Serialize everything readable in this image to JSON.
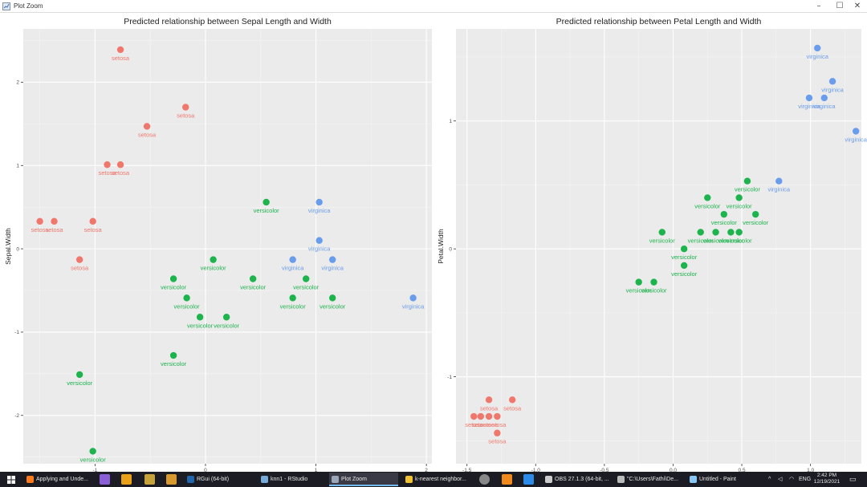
{
  "window": {
    "title": "Plot Zoom",
    "controls": {
      "minimize": "–",
      "maximize": "☐",
      "close": "✕"
    }
  },
  "chart_data": [
    {
      "type": "scatter",
      "title": "Predicted relationship between Sepal Length and Width",
      "xlabel": "Sepal.Length",
      "ylabel": "Sepal.Width",
      "xlim": [
        -1.65,
        2.05
      ],
      "ylim": [
        -2.58,
        2.64
      ],
      "xticks": [
        -1,
        0,
        1,
        2
      ],
      "yticks": [
        -2,
        -1,
        0,
        1,
        2
      ],
      "grid": true,
      "colors": {
        "setosa": "#F0776C",
        "versicolor": "#1DB34D",
        "virginica": "#6A9CEC"
      },
      "points": [
        {
          "x": -0.77,
          "y": 2.39,
          "label": "setosa"
        },
        {
          "x": -0.18,
          "y": 1.7,
          "label": "setosa"
        },
        {
          "x": -0.53,
          "y": 1.47,
          "label": "setosa"
        },
        {
          "x": -0.89,
          "y": 1.01,
          "label": "setosa"
        },
        {
          "x": -0.77,
          "y": 1.01,
          "label": "setosa"
        },
        {
          "x": -1.5,
          "y": 0.33,
          "label": "setosa"
        },
        {
          "x": -1.37,
          "y": 0.33,
          "label": "setosa"
        },
        {
          "x": -1.02,
          "y": 0.33,
          "label": "setosa"
        },
        {
          "x": -1.14,
          "y": -0.13,
          "label": "setosa"
        },
        {
          "x": 0.55,
          "y": 0.56,
          "label": "versicolor"
        },
        {
          "x": 1.03,
          "y": 0.56,
          "label": "virginica"
        },
        {
          "x": 1.03,
          "y": 0.1,
          "label": "virginica"
        },
        {
          "x": 0.79,
          "y": -0.13,
          "label": "virginica"
        },
        {
          "x": 1.15,
          "y": -0.13,
          "label": "virginica"
        },
        {
          "x": 0.07,
          "y": -0.13,
          "label": "versicolor"
        },
        {
          "x": -0.29,
          "y": -0.36,
          "label": "versicolor"
        },
        {
          "x": 0.43,
          "y": -0.36,
          "label": "versicolor"
        },
        {
          "x": 0.91,
          "y": -0.36,
          "label": "versicolor"
        },
        {
          "x": -0.17,
          "y": -0.59,
          "label": "versicolor"
        },
        {
          "x": 0.79,
          "y": -0.59,
          "label": "versicolor"
        },
        {
          "x": 1.15,
          "y": -0.59,
          "label": "versicolor"
        },
        {
          "x": 1.88,
          "y": -0.59,
          "label": "virginica"
        },
        {
          "x": -0.05,
          "y": -0.82,
          "label": "versicolor"
        },
        {
          "x": 0.19,
          "y": -0.82,
          "label": "versicolor"
        },
        {
          "x": -0.29,
          "y": -1.28,
          "label": "versicolor"
        },
        {
          "x": -1.14,
          "y": -1.51,
          "label": "versicolor"
        },
        {
          "x": -1.02,
          "y": -2.43,
          "label": "versicolor"
        }
      ]
    },
    {
      "type": "scatter",
      "title": "Predicted relationship between Petal Length and Width",
      "xlabel": "Petal.Length",
      "ylabel": "Petal.Width",
      "xlim": [
        -1.58,
        1.37
      ],
      "ylim": [
        -1.68,
        1.72
      ],
      "xticks": [
        -1.5,
        -1.0,
        -0.5,
        0.0,
        0.5,
        1.0
      ],
      "yticks": [
        -1,
        0,
        1
      ],
      "tick_labels_x": [
        "-1.5",
        "-1.0",
        "-0.5",
        "0.0",
        "0.5",
        "1.0"
      ],
      "grid": true,
      "colors": {
        "setosa": "#F0776C",
        "versicolor": "#1DB34D",
        "virginica": "#6A9CEC"
      },
      "points": [
        {
          "x": 1.05,
          "y": 1.57,
          "label": "virginica"
        },
        {
          "x": 1.16,
          "y": 1.31,
          "label": "virginica"
        },
        {
          "x": 0.99,
          "y": 1.18,
          "label": "virginica"
        },
        {
          "x": 1.1,
          "y": 1.18,
          "label": "virginica"
        },
        {
          "x": 1.33,
          "y": 0.92,
          "label": "virginica"
        },
        {
          "x": 0.54,
          "y": 0.53,
          "label": "versicolor"
        },
        {
          "x": 0.77,
          "y": 0.53,
          "label": "virginica"
        },
        {
          "x": 0.25,
          "y": 0.4,
          "label": "versicolor"
        },
        {
          "x": 0.48,
          "y": 0.4,
          "label": "versicolor"
        },
        {
          "x": 0.37,
          "y": 0.27,
          "label": "versicolor"
        },
        {
          "x": 0.6,
          "y": 0.27,
          "label": "versicolor"
        },
        {
          "x": -0.08,
          "y": 0.13,
          "label": "versicolor"
        },
        {
          "x": 0.2,
          "y": 0.13,
          "label": "versicolor"
        },
        {
          "x": 0.31,
          "y": 0.13,
          "label": "versicolor"
        },
        {
          "x": 0.42,
          "y": 0.13,
          "label": "versicolor"
        },
        {
          "x": 0.48,
          "y": 0.13,
          "label": "versicolor"
        },
        {
          "x": 0.08,
          "y": 0.0,
          "label": "versicolor"
        },
        {
          "x": 0.08,
          "y": -0.13,
          "label": "versicolor"
        },
        {
          "x": -0.25,
          "y": -0.26,
          "label": "versicolor"
        },
        {
          "x": -0.14,
          "y": -0.26,
          "label": "versicolor"
        },
        {
          "x": -1.34,
          "y": -1.18,
          "label": "setosa"
        },
        {
          "x": -1.17,
          "y": -1.18,
          "label": "setosa"
        },
        {
          "x": -1.45,
          "y": -1.31,
          "label": "setosa"
        },
        {
          "x": -1.4,
          "y": -1.31,
          "label": "setosa"
        },
        {
          "x": -1.34,
          "y": -1.31,
          "label": "setosa"
        },
        {
          "x": -1.28,
          "y": -1.31,
          "label": "setosa"
        },
        {
          "x": -1.28,
          "y": -1.44,
          "label": "setosa"
        }
      ]
    }
  ],
  "taskbar": {
    "apps": [
      {
        "label": "Applying and Unde...",
        "icon": "firefox-icon",
        "color": "#ff7a1a"
      },
      {
        "label": "RGui (64-bit)",
        "icon": "r-icon",
        "color": "#2166ac"
      },
      {
        "label": "knn1 - RStudio",
        "icon": "rstudio-icon",
        "color": "#75aadb"
      },
      {
        "label": "Plot Zoom",
        "icon": "plot-icon",
        "color": "#9aa7b8",
        "active": true
      },
      {
        "label": "k-nearest neighbor...",
        "icon": "folder-icon",
        "color": "#f1c232"
      },
      {
        "label": "OBS 27.1.3 (64-bit, ...",
        "icon": "obs-icon",
        "color": "#cccccc"
      },
      {
        "label": "\"C:\\Users\\Fathi\\De...",
        "icon": "terminal-icon",
        "color": "#bbbbbb"
      },
      {
        "label": "Untitled - Paint",
        "icon": "paint-icon",
        "color": "#8ac6f5"
      }
    ],
    "language": "ENG",
    "time": "2:42 PM",
    "date": "12/19/2021"
  }
}
